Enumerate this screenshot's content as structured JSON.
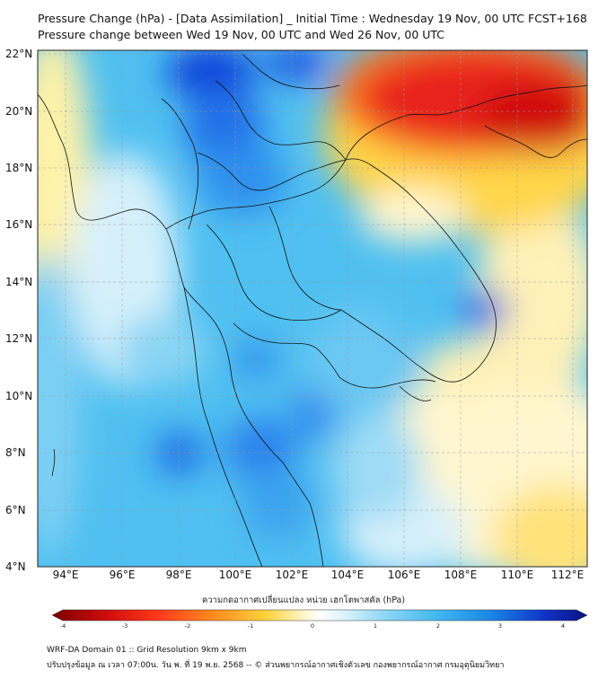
{
  "title_line1": "Pressure Change (hPa) - [Data Assimilation] _ Initial Time : Wednesday 19 Nov, 00 UTC FCST+168",
  "title_line2": "Pressure change between Wed 19 Nov, 00 UTC and Wed 26 Nov, 00 UTC",
  "lat_labels": [
    "22°N",
    "20°N",
    "18°N",
    "16°N",
    "14°N",
    "12°N",
    "10°N",
    "8°N",
    "6°N",
    "4°N"
  ],
  "lon_labels": [
    "94°E",
    "96°E",
    "98°E",
    "100°E",
    "102°E",
    "104°E",
    "106°E",
    "108°E",
    "110°E",
    "112°E"
  ],
  "colorbar": {
    "title": "ความกดอากาศเปลี่ยนแปลง หน่วย เฮกโตพาสคัล (hPa)",
    "ticks": [
      "-4",
      "-3",
      "-2",
      "-1",
      "0",
      "1",
      "2",
      "3",
      "4"
    ],
    "min": -4,
    "max": 4,
    "colors": {
      "neg_max": "#8b0000",
      "neg": "#e8201a",
      "warm": "#ffd23a",
      "zero": "#ffffff",
      "pos_low": "#8fd8f5",
      "pos": "#33b2ee",
      "pos_max": "#0a1aa0"
    }
  },
  "footer_line1": "WRF-DA Domain 01 :: Grid Resolution 9km x 9km",
  "footer_line2": "ปรับปรุงข้อมูล ณ เวลา 07:00น. วัน พ. ที่ 19 พ.ย. 2568 -- © ส่วนพยากรณ์อากาศเชิงตัวเลข กองพยากรณ์อากาศ กรมอุตุนิยมวิทยา"
}
